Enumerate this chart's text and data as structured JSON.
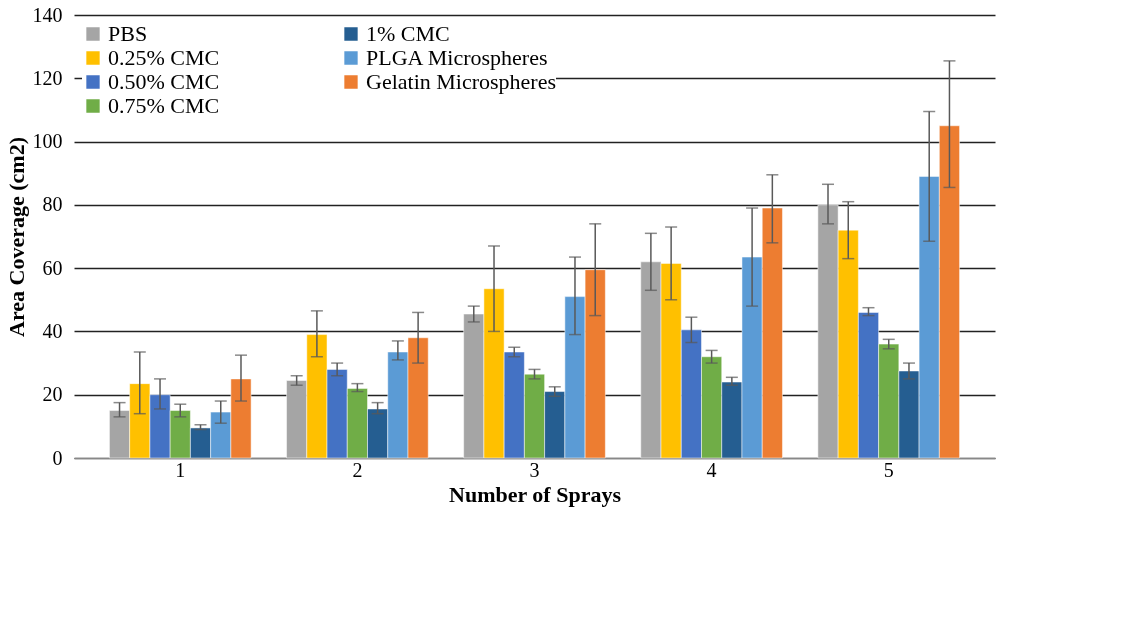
{
  "chart_data": {
    "type": "bar",
    "xlabel": "Number of Sprays",
    "ylabel": "Area Coverage (cm2)",
    "categories": [
      "1",
      "2",
      "3",
      "4",
      "5"
    ],
    "series": [
      {
        "name": "PBS",
        "color": "#a5a5a5",
        "values": [
          15,
          24.5,
          45.5,
          62,
          80
        ],
        "errors": [
          [
            13,
            17.5
          ],
          [
            23,
            26
          ],
          [
            43,
            48
          ],
          [
            53,
            71
          ],
          [
            74,
            86.5
          ]
        ]
      },
      {
        "name": "0.25% CMC",
        "color": "#ffc000",
        "values": [
          23.5,
          39,
          53.5,
          61.5,
          72
        ],
        "errors": [
          [
            14,
            33.5
          ],
          [
            32,
            46.5
          ],
          [
            40,
            67
          ],
          [
            50,
            73
          ],
          [
            63,
            81
          ]
        ]
      },
      {
        "name": "0.50% CMC",
        "color": "#4472c4",
        "values": [
          20,
          28,
          33.5,
          40.5,
          46
        ],
        "errors": [
          [
            15.5,
            25
          ],
          [
            26,
            30
          ],
          [
            32,
            35
          ],
          [
            36.5,
            44.5
          ],
          [
            45,
            47.5
          ]
        ]
      },
      {
        "name": "0.75% CMC",
        "color": "#70ad47",
        "values": [
          15,
          22,
          26.5,
          32,
          36
        ],
        "errors": [
          [
            13,
            17
          ],
          [
            21,
            23.5
          ],
          [
            25,
            28
          ],
          [
            30,
            34
          ],
          [
            34.5,
            37.5
          ]
        ]
      },
      {
        "name": "1% CMC",
        "color": "#255e91",
        "values": [
          9.5,
          15.5,
          21,
          24,
          27.5
        ],
        "errors": [
          [
            9,
            10.5
          ],
          [
            14,
            17.5
          ],
          [
            19.5,
            22.5
          ],
          [
            23,
            25.5
          ],
          [
            25,
            30
          ]
        ]
      },
      {
        "name": "PLGA Microspheres",
        "color": "#5b9bd5",
        "values": [
          14.5,
          33.5,
          51,
          63.5,
          89
        ],
        "errors": [
          [
            11,
            18
          ],
          [
            31,
            37
          ],
          [
            39,
            63.5
          ],
          [
            48,
            79
          ],
          [
            68.5,
            109.5
          ]
        ]
      },
      {
        "name": "Gelatin Microspheres",
        "color": "#ed7d31",
        "values": [
          25,
          38,
          59.5,
          79,
          105
        ],
        "errors": [
          [
            18,
            32.5
          ],
          [
            30,
            46
          ],
          [
            45,
            74
          ],
          [
            68,
            89.5
          ],
          [
            85.5,
            125.5
          ]
        ]
      }
    ],
    "ylim": [
      0,
      140
    ],
    "yticks": [
      0,
      20,
      40,
      60,
      80,
      100,
      120,
      140
    ],
    "grid": "y",
    "legend": "top left"
  }
}
